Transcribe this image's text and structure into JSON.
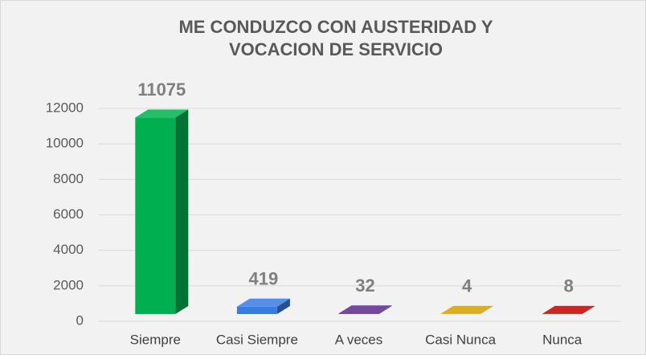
{
  "chart_data": {
    "type": "bar3d",
    "title": [
      "ME CONDUZCO CON AUSTERIDAD Y",
      "VOCACION DE SERVICIO"
    ],
    "categories": [
      "Siempre",
      "Casi Siempre",
      "A veces",
      "Casi Nunca",
      "Nunca"
    ],
    "values": [
      11075,
      419,
      32,
      4,
      8
    ],
    "colors": [
      "#00b050",
      "#3a7be0",
      "#5b2a8c",
      "#d4a000",
      "#c00000"
    ],
    "ylim": [
      0,
      12000
    ],
    "yticks": [
      0,
      2000,
      4000,
      6000,
      8000,
      10000,
      12000
    ],
    "grid": true
  }
}
